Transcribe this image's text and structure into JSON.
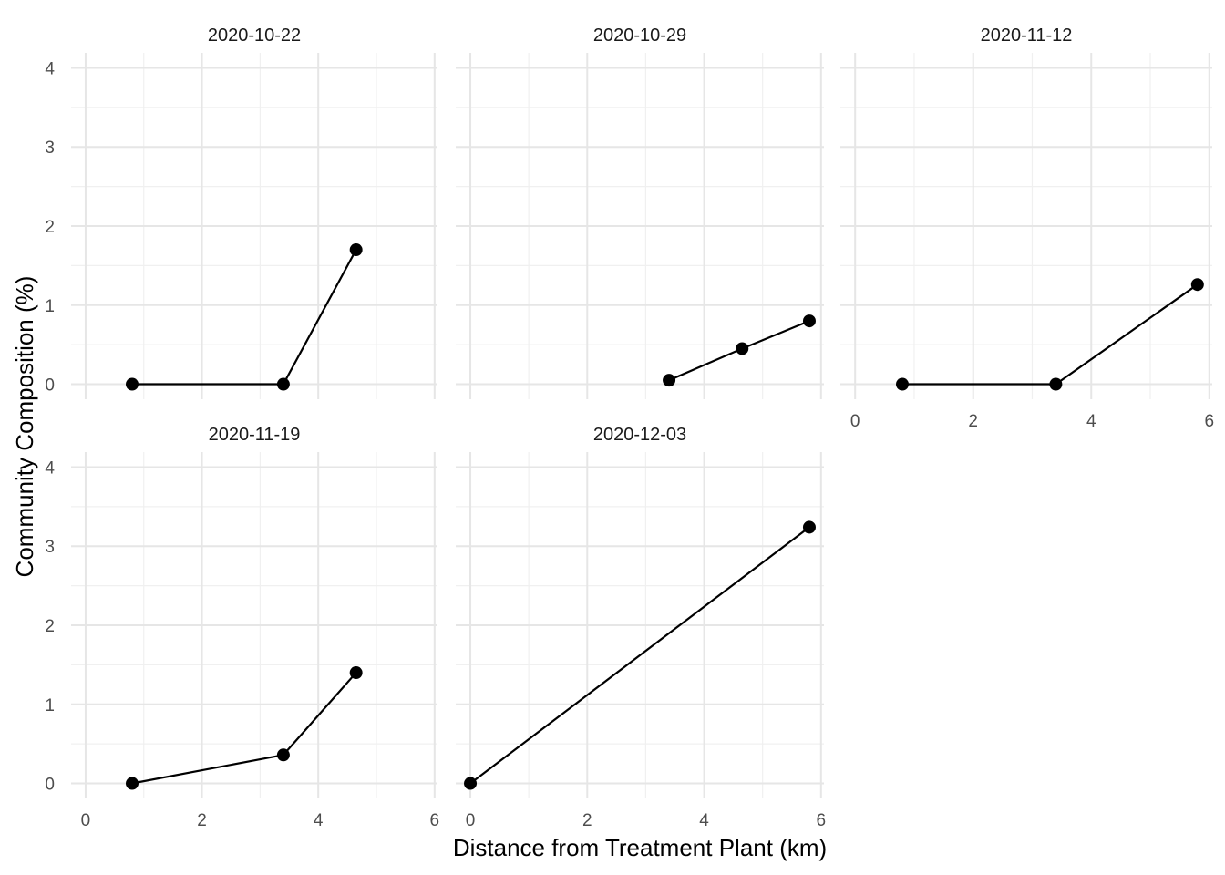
{
  "chart_data": {
    "type": "line",
    "xlabel": "Distance from Treatment Plant (km)",
    "ylabel": "Community Composition (%)",
    "xlim": [
      -0.25,
      6.05
    ],
    "ylim": [
      -0.19,
      4.19
    ],
    "x_ticks": [
      0,
      2,
      4,
      6
    ],
    "y_ticks": [
      0,
      1,
      2,
      3,
      4
    ],
    "grid": true,
    "facets": [
      {
        "title": "2020-10-22",
        "x": [
          0.8,
          3.4,
          4.65
        ],
        "y": [
          0.0,
          0.0,
          1.7
        ],
        "show_x_ticks": false,
        "show_y_ticks": true
      },
      {
        "title": "2020-10-29",
        "x": [
          3.4,
          4.65,
          5.8
        ],
        "y": [
          0.05,
          0.45,
          0.8
        ],
        "show_x_ticks": false,
        "show_y_ticks": false
      },
      {
        "title": "2020-11-12",
        "x": [
          0.8,
          3.4,
          5.8
        ],
        "y": [
          0.0,
          0.0,
          1.26
        ],
        "show_x_ticks": true,
        "show_y_ticks": false
      },
      {
        "title": "2020-11-19",
        "x": [
          0.8,
          3.4,
          4.65
        ],
        "y": [
          0.0,
          0.36,
          1.4
        ],
        "show_x_ticks": true,
        "show_y_ticks": true
      },
      {
        "title": "2020-12-03",
        "x": [
          0.0,
          5.8
        ],
        "y": [
          0.0,
          3.24
        ],
        "show_x_ticks": true,
        "show_y_ticks": false
      }
    ]
  }
}
